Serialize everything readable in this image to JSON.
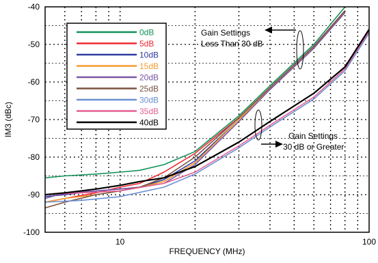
{
  "chart_data": {
    "type": "line",
    "title": "",
    "xlabel": "FREQUENCY (MHz)",
    "ylabel": "IM3 (dBc)",
    "xscale": "log",
    "xlim": [
      5,
      100
    ],
    "ylim": [
      -100,
      -40
    ],
    "x_ticks": [
      {
        "value": 10,
        "label": "10"
      },
      {
        "value": 100,
        "label": "100"
      }
    ],
    "y_ticks": [
      {
        "value": -40,
        "label": "-40"
      },
      {
        "value": -50,
        "label": "-50"
      },
      {
        "value": -60,
        "label": "-60"
      },
      {
        "value": -70,
        "label": "-70"
      },
      {
        "value": -80,
        "label": "-80"
      },
      {
        "value": -90,
        "label": "-90"
      },
      {
        "value": -100,
        "label": "-100"
      }
    ],
    "grid": "dotted, major and minor",
    "legend_position": "upper-left",
    "series": [
      {
        "name": "0dB",
        "color": "#11915a",
        "x": [
          5,
          6,
          8,
          10,
          12,
          15,
          20,
          30,
          40,
          60,
          80
        ],
        "y": [
          -85.5,
          -85,
          -84.5,
          -84,
          -83.5,
          -82,
          -78.5,
          -69,
          -61,
          -50,
          -40
        ]
      },
      {
        "name": "5dB",
        "color": "#ed2831",
        "x": [
          5,
          6,
          8,
          10,
          12,
          15,
          20,
          30,
          40,
          60,
          80
        ],
        "y": [
          -92,
          -91,
          -89.5,
          -88,
          -87,
          -84,
          -79,
          -69.5,
          -61.5,
          -50.5,
          -41
        ]
      },
      {
        "name": "10dB",
        "color": "#2d3aa0",
        "x": [
          5,
          6,
          8,
          10,
          12,
          15,
          20,
          30,
          40,
          60,
          80
        ],
        "y": [
          -90.5,
          -90,
          -89,
          -88.5,
          -88,
          -86,
          -81,
          -70,
          -62,
          -51,
          -41.5
        ]
      },
      {
        "name": "15dB",
        "color": "#f59a2b",
        "x": [
          5,
          6,
          8,
          10,
          12,
          15,
          20,
          30,
          40,
          60,
          80
        ],
        "y": [
          -92,
          -91,
          -90,
          -89,
          -88,
          -86.5,
          -81.5,
          -70,
          -62,
          -51,
          -41.5
        ]
      },
      {
        "name": "20dB",
        "color": "#7a55a6",
        "x": [
          5,
          6,
          8,
          10,
          12,
          15,
          20,
          30,
          40,
          60,
          80
        ],
        "y": [
          -91,
          -89.5,
          -89,
          -88.5,
          -88,
          -87,
          -82,
          -70.5,
          -62,
          -51,
          -41.5
        ]
      },
      {
        "name": "25dB",
        "color": "#7b5140",
        "x": [
          5,
          6,
          8,
          10,
          12,
          15,
          20,
          30,
          40,
          60,
          80
        ],
        "y": [
          -93.5,
          -92,
          -90,
          -89,
          -88,
          -85.5,
          -80,
          -69.5,
          -61.5,
          -50.5,
          -41
        ]
      },
      {
        "name": "30dB",
        "color": "#6a8fd2",
        "x": [
          5,
          7,
          10,
          15,
          20,
          30,
          40,
          60,
          80,
          100
        ],
        "y": [
          -92,
          -91.5,
          -90.5,
          -88,
          -84.5,
          -77.5,
          -72,
          -64.5,
          -57,
          -47
        ]
      },
      {
        "name": "35dB",
        "color": "#e55e92",
        "x": [
          5,
          7,
          10,
          15,
          20,
          30,
          40,
          60,
          80,
          100
        ],
        "y": [
          -90,
          -89.5,
          -89,
          -87,
          -84,
          -77,
          -71.5,
          -64,
          -56.5,
          -46.5
        ]
      },
      {
        "name": "40dB",
        "color": "#000000",
        "x": [
          5,
          6,
          8,
          10,
          12,
          15,
          20,
          30,
          40,
          60,
          80,
          100
        ],
        "y": [
          -90,
          -89.5,
          -88.5,
          -87.5,
          -86.5,
          -85.5,
          -82.5,
          -76,
          -70.5,
          -63,
          -56,
          -46
        ]
      }
    ],
    "annotations": [
      {
        "lines": [
          "Gain Settings",
          "Less Than 30 dB"
        ]
      },
      {
        "lines": [
          "Gain Settings",
          "30 dB or Greater"
        ]
      }
    ]
  }
}
